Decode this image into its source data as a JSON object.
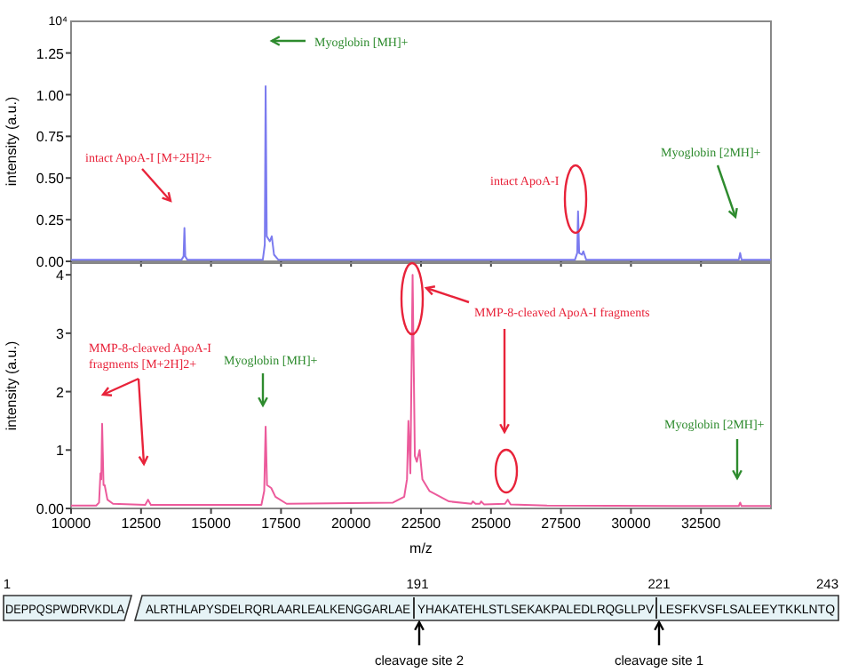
{
  "chart_data": [
    {
      "type": "line",
      "ylabel": "intensity (a.u.)",
      "xlim": [
        10000,
        35000
      ],
      "xticks": [
        {
          "value": 10000,
          "label": null
        },
        {
          "value": 12500,
          "label": null
        },
        {
          "value": 15000,
          "label": null
        },
        {
          "value": 17500,
          "label": null
        },
        {
          "value": 20000,
          "label": null
        },
        {
          "value": 22500,
          "label": null
        },
        {
          "value": 25000,
          "label": null
        },
        {
          "value": 27500,
          "label": null
        },
        {
          "value": 30000,
          "label": null
        },
        {
          "value": 32500,
          "label": null
        }
      ],
      "ylim": [
        0,
        1.44
      ],
      "yticks": [
        {
          "value": 0,
          "label": "0.00"
        },
        {
          "value": 0.25,
          "label": "0.25"
        },
        {
          "value": 0.5,
          "label": "0.50"
        },
        {
          "value": 0.75,
          "label": "0.75"
        },
        {
          "value": 1,
          "label": "1.00"
        },
        {
          "value": 1.25,
          "label": "1.25"
        }
      ],
      "tick_labels": "y",
      "grid": false,
      "marker": "none",
      "series": [
        {
          "color": "#7b7bef",
          "x": [
            10000,
            13950,
            14020,
            14050,
            14080,
            14150,
            16850,
            16920,
            16950,
            16990,
            17100,
            17170,
            17250,
            17400,
            28000,
            28080,
            28110,
            28150,
            28250,
            28300,
            28400,
            33850,
            33900,
            33950,
            35000
          ],
          "values": [
            0.01,
            0.01,
            0.03,
            0.2,
            0.03,
            0.01,
            0.01,
            0.1,
            1.05,
            0.15,
            0.12,
            0.15,
            0.04,
            0.01,
            0.01,
            0.05,
            0.3,
            0.05,
            0.04,
            0.06,
            0.01,
            0.01,
            0.05,
            0.01,
            0.01
          ]
        }
      ],
      "annotations": [
        "10⁴",
        "intact ApoA-I [M+2H]2+",
        "Myoglobin [MH]+",
        "intact ApoA-I",
        "Myoglobin [2MH]+"
      ]
    },
    {
      "type": "line",
      "xlabel": "m/z",
      "ylabel": "intensity (a.u.)",
      "xlim": [
        10000,
        35000
      ],
      "xticks": [
        10000,
        12500,
        15000,
        17500,
        20000,
        22500,
        25000,
        27500,
        30000,
        32500
      ],
      "ylim": [
        0,
        4.2
      ],
      "yticks": [
        {
          "value": 0,
          "label": "0.00"
        },
        1,
        2,
        3,
        4
      ],
      "grid": false,
      "marker": "none",
      "series": [
        {
          "color": "#ec5a9b",
          "x": [
            10000,
            10900,
            11000,
            11050,
            11080,
            11110,
            11160,
            11200,
            11300,
            11500,
            12650,
            12750,
            12850,
            16800,
            16900,
            16950,
            17000,
            17150,
            17300,
            17700,
            21500,
            21900,
            22000,
            22050,
            22120,
            22200,
            22280,
            22350,
            22450,
            22550,
            22800,
            23500,
            24300,
            24350,
            24450,
            24600,
            24650,
            24750,
            25500,
            25600,
            25700,
            27000,
            33850,
            33900,
            33950,
            35000
          ],
          "values": [
            0.05,
            0.05,
            0.1,
            0.6,
            0.5,
            1.45,
            0.4,
            0.4,
            0.15,
            0.08,
            0.06,
            0.15,
            0.06,
            0.06,
            0.3,
            1.4,
            0.4,
            0.35,
            0.2,
            0.08,
            0.1,
            0.2,
            0.5,
            1.5,
            0.6,
            4.0,
            0.9,
            0.8,
            1.0,
            0.5,
            0.3,
            0.12,
            0.08,
            0.12,
            0.08,
            0.08,
            0.12,
            0.07,
            0.08,
            0.15,
            0.07,
            0.05,
            0.04,
            0.1,
            0.04,
            0.04
          ]
        }
      ],
      "annotations": [
        "MMP-8-cleaved ApoA-I fragments [M+2H]2+",
        "Myoglobin [MH]+",
        "MMP-8-cleaved ApoA-I fragments",
        "Myoglobin [2MH]+"
      ]
    },
    {
      "type": "other",
      "annotations": [
        "1",
        "DEPPQSPWDRVKDLA",
        "ALRTHLAPYSDELRQRLAARLEALKENGGARLAE",
        "YHAKATEHLSTLSEKAKPALEDLRQGLLPV",
        "LESFKVSFLSALEEYTKKLNTQ",
        "191",
        "221",
        "243",
        "cleavage site 2",
        "cleavage site 1"
      ]
    }
  ]
}
